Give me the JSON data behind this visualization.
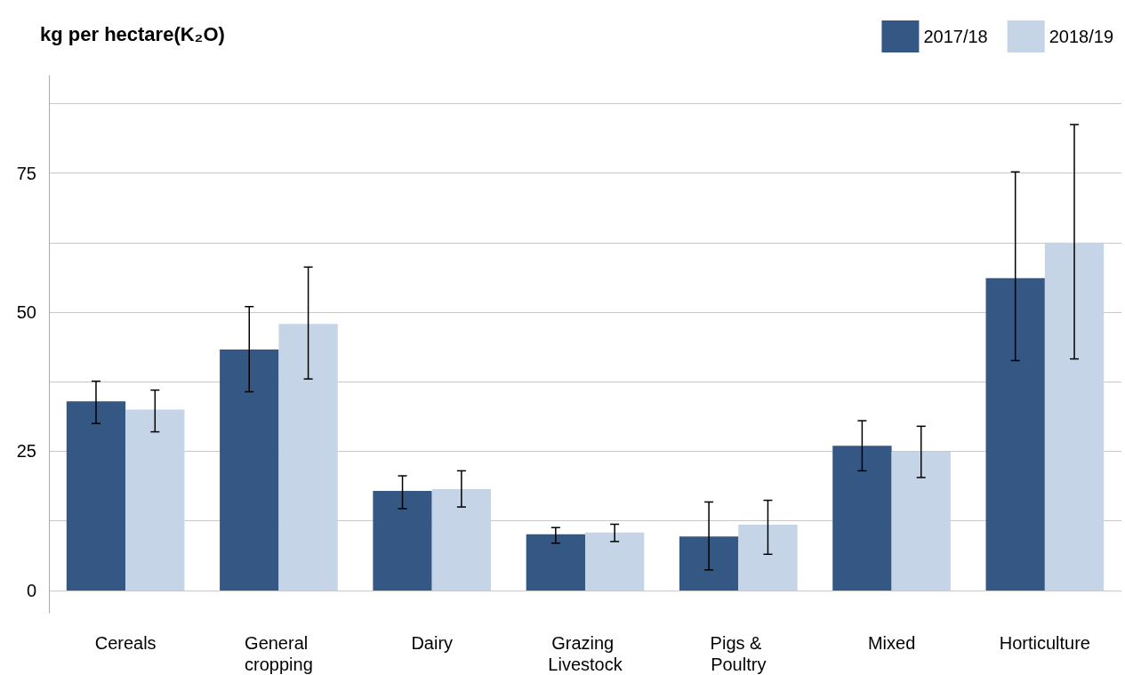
{
  "chart_data": {
    "type": "bar",
    "title": "kg per hectare(K₂O)",
    "categories": [
      "Cereals",
      "General cropping",
      "Dairy",
      "Grazing Livestock",
      "Pigs & Poultry",
      "Mixed",
      "Horticulture"
    ],
    "series": [
      {
        "name": "2017/18",
        "color": "#355784",
        "values": [
          34.0,
          43.3,
          17.9,
          10.1,
          9.7,
          26.0,
          56.1
        ],
        "errors": [
          [
            30.0,
            37.6
          ],
          [
            35.7,
            51.0
          ],
          [
            14.7,
            20.6
          ],
          [
            8.5,
            11.3
          ],
          [
            3.7,
            15.9
          ],
          [
            21.5,
            30.5
          ],
          [
            41.3,
            75.2
          ]
        ]
      },
      {
        "name": "2018/19",
        "color": "#c5d4e7",
        "values": [
          32.5,
          47.9,
          18.2,
          10.4,
          11.8,
          24.9,
          62.5
        ],
        "errors": [
          [
            28.5,
            36.0
          ],
          [
            38.0,
            58.1
          ],
          [
            15.0,
            21.5
          ],
          [
            8.8,
            11.9
          ],
          [
            6.5,
            16.2
          ],
          [
            20.3,
            29.5
          ],
          [
            41.6,
            83.7
          ]
        ]
      }
    ],
    "ylim": [
      -4,
      92.5
    ],
    "yticks": [
      0,
      {
        "value": 12.5,
        "label": null
      },
      25,
      {
        "value": 37.5,
        "label": null
      },
      50,
      {
        "value": 62.5,
        "label": null
      },
      75,
      {
        "value": 87.5,
        "label": null
      }
    ],
    "grid": true,
    "legend": "top right"
  }
}
